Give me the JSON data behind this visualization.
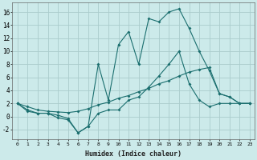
{
  "xlabel": "Humidex (Indice chaleur)",
  "bg_color": "#cceaea",
  "grid_color": "#aacccc",
  "line_color": "#1a6e6e",
  "line1_x": [
    0,
    1,
    2,
    3,
    4,
    5,
    6,
    7,
    8,
    9,
    10,
    11,
    12,
    13,
    14,
    15,
    16,
    17,
    18,
    19,
    20,
    21,
    22,
    23
  ],
  "line1_y": [
    2.0,
    1.0,
    0.5,
    0.5,
    -0.2,
    -0.5,
    -2.5,
    -1.5,
    0.5,
    1.0,
    1.0,
    2.5,
    3.0,
    4.5,
    6.2,
    8.0,
    10.0,
    5.0,
    2.5,
    1.5,
    2.0,
    2.0,
    2.0,
    2.0
  ],
  "line2_x": [
    0,
    1,
    2,
    3,
    4,
    5,
    6,
    7,
    8,
    9,
    10,
    11,
    12,
    13,
    14,
    15,
    16,
    17,
    18,
    19,
    20,
    21,
    22,
    23
  ],
  "line2_y": [
    2.0,
    1.5,
    1.0,
    0.8,
    0.7,
    0.6,
    0.8,
    1.2,
    1.8,
    2.2,
    2.8,
    3.2,
    3.8,
    4.3,
    5.0,
    5.5,
    6.2,
    6.8,
    7.2,
    7.5,
    3.5,
    3.0,
    2.0,
    2.0
  ],
  "line3_x": [
    0,
    1,
    2,
    3,
    4,
    5,
    6,
    7,
    8,
    9,
    10,
    11,
    12,
    13,
    14,
    15,
    16,
    17,
    18,
    19,
    20,
    21,
    22,
    23
  ],
  "line3_y": [
    2.0,
    0.8,
    0.5,
    0.5,
    0.2,
    -0.3,
    -2.5,
    -1.5,
    8.0,
    2.5,
    11.0,
    13.0,
    8.0,
    15.0,
    14.5,
    16.0,
    16.5,
    13.5,
    10.0,
    7.0,
    3.5,
    3.0,
    2.0,
    2.0
  ],
  "ylim": [
    -3.5,
    17.5
  ],
  "xlim": [
    -0.5,
    23.5
  ],
  "yticks": [
    -2,
    0,
    2,
    4,
    6,
    8,
    10,
    12,
    14,
    16
  ],
  "xticks": [
    0,
    1,
    2,
    3,
    4,
    5,
    6,
    7,
    8,
    9,
    10,
    11,
    12,
    13,
    14,
    15,
    16,
    17,
    18,
    19,
    20,
    21,
    22,
    23
  ]
}
